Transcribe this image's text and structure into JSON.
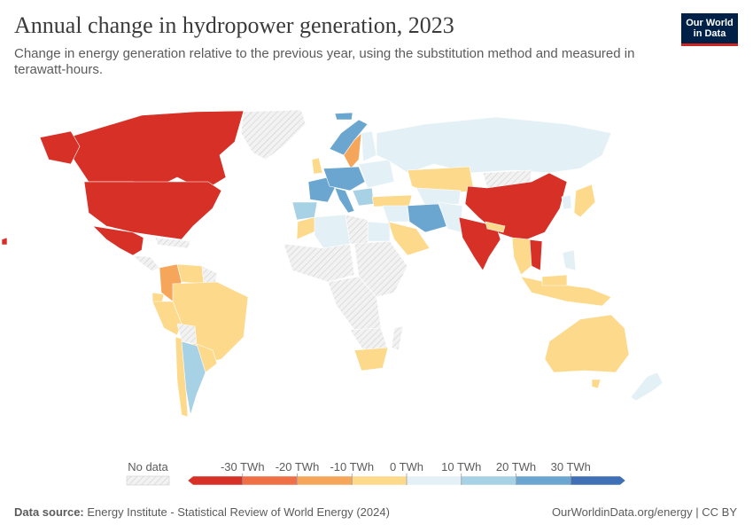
{
  "title": "Annual change in hydropower generation, 2023",
  "subtitle": "Change in energy generation relative to the previous year, using the substitution method and measured in terawatt-hours.",
  "logo": {
    "line1": "Our World",
    "line2": "in Data"
  },
  "legend": {
    "no_data_label": "No data",
    "ticks": [
      "-30 TWh",
      "-20 TWh",
      "-10 TWh",
      "0 TWh",
      "10 TWh",
      "20 TWh",
      "30 TWh"
    ],
    "colors": [
      "#d73027",
      "#ef6f47",
      "#f6a65b",
      "#fdd98b",
      "#e3f1f6",
      "#a7d1e4",
      "#6aa6d0",
      "#3f6fb5"
    ]
  },
  "colors": {
    "no_data": "#e6e6e6",
    "strong_negative": "#d73027",
    "negative": "#f6a65b",
    "slight_negative": "#fdd98b",
    "slight_positive": "#e3f1f6",
    "positive": "#a7d1e4",
    "strong_positive": "#6aa6d0"
  },
  "footer": {
    "source_label": "Data source:",
    "source_text": "Energy Institute - Statistical Review of World Energy (2024)",
    "url_text": "OurWorldinData.org/energy | CC BY"
  }
}
